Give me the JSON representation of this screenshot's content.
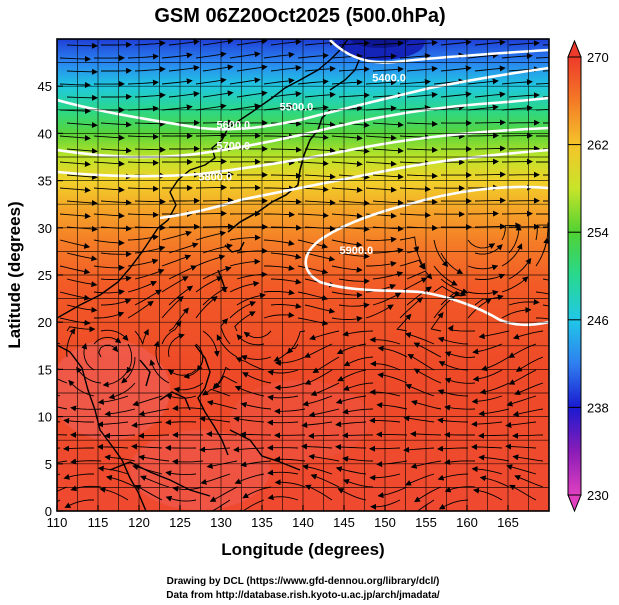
{
  "chart_data": {
    "type": "heatmap",
    "title": "GSM 06Z20Oct2025 (500.0hPa)",
    "xlabel": "Longitude (degrees)",
    "ylabel": "Latitude  (degrees)",
    "xlim": [
      110,
      170
    ],
    "ylim": [
      0,
      50
    ],
    "x_ticks": [
      "110",
      "115",
      "120",
      "125",
      "130",
      "135",
      "140",
      "145",
      "150",
      "155",
      "160",
      "165"
    ],
    "y_ticks": [
      "0",
      "5",
      "10",
      "15",
      "20",
      "25",
      "30",
      "35",
      "40",
      "45"
    ],
    "field": "temperature (K)",
    "colorbar": {
      "range": [
        230,
        270
      ],
      "ticks": [
        "230",
        "238",
        "246",
        "254",
        "262",
        "270"
      ]
    },
    "temperature_profile": [
      {
        "lat": 50,
        "K": 238
      },
      {
        "lat": 46,
        "K": 248
      },
      {
        "lat": 42,
        "K": 254
      },
      {
        "lat": 38,
        "K": 259
      },
      {
        "lat": 34,
        "K": 262
      },
      {
        "lat": 30,
        "K": 264
      },
      {
        "lat": 24,
        "K": 266
      },
      {
        "lat": 0,
        "K": 267
      }
    ],
    "height_contours": [
      {
        "label": "5400.0",
        "lon": 150.5,
        "lat": 45.5
      },
      {
        "label": "5500.0",
        "lon": 139.2,
        "lat": 42.4
      },
      {
        "label": "5600.0",
        "lon": 131.5,
        "lat": 40.5
      },
      {
        "label": "5700.0",
        "lon": 131.5,
        "lat": 38.3
      },
      {
        "label": "5800.0",
        "lon": 129.3,
        "lat": 35.0
      },
      {
        "label": "5900.0",
        "lon": 146.5,
        "lat": 27.2
      }
    ],
    "grid": true,
    "overlays": [
      "wind streamlines",
      "coastlines"
    ]
  },
  "credits": {
    "line1": "Drawing by DCL (https://www.gfd-dennou.org/library/dcl/)",
    "line2": "Data from http://database.rish.kyoto-u.ac.jp/arch/jmadata/"
  }
}
